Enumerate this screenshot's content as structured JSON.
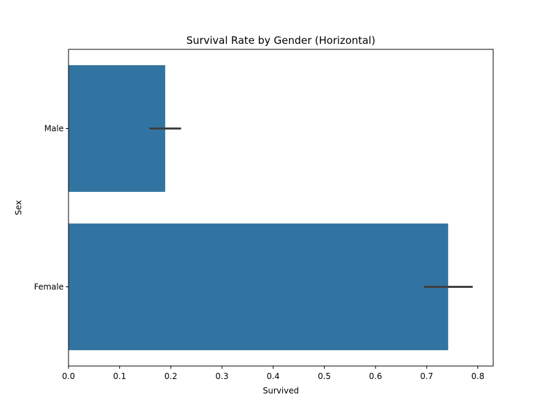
{
  "chart_data": {
    "type": "bar",
    "orientation": "horizontal",
    "title": "Survival Rate by Gender (Horizontal)",
    "xlabel": "Survived",
    "ylabel": "Sex",
    "categories": [
      "Male",
      "Female"
    ],
    "values": [
      0.189,
      0.742
    ],
    "error_bars": [
      {
        "low": 0.158,
        "high": 0.22
      },
      {
        "low": 0.695,
        "high": 0.79
      }
    ],
    "xlim": [
      0,
      0.83
    ],
    "xticks": [
      "0.0",
      "0.1",
      "0.2",
      "0.3",
      "0.4",
      "0.5",
      "0.6",
      "0.7",
      "0.8"
    ],
    "grid": false,
    "bar_color": "#3274a1",
    "error_color": "#3f3f3f"
  }
}
